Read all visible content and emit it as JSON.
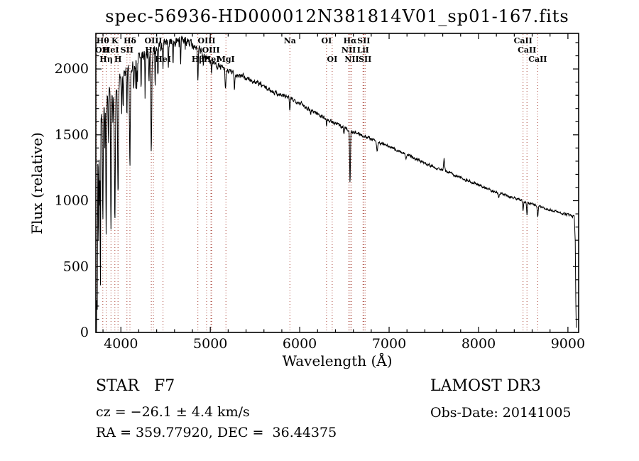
{
  "chart_data": {
    "type": "line",
    "title": "spec-56936-HD000012N381814V01_sp01-167.fits",
    "xlabel": "Wavelength (Å)",
    "ylabel": "Flux (relative)",
    "xlim": [
      3720,
      9120
    ],
    "ylim": [
      0,
      2270
    ],
    "x_ticks": [
      4000,
      5000,
      6000,
      7000,
      8000,
      9000
    ],
    "y_ticks": [
      0,
      500,
      1000,
      1500,
      2000
    ],
    "x_minor_step": 200,
    "y_minor_step": 100,
    "grid": false,
    "legend": "none",
    "line_color": "#000000",
    "marker_line_color": "#aa4438",
    "noise_seed": 7,
    "noise_profile": [
      [
        3720,
        110
      ],
      [
        4000,
        85
      ],
      [
        4400,
        60
      ],
      [
        4800,
        42
      ],
      [
        5200,
        30
      ],
      [
        5600,
        26
      ],
      [
        6000,
        22
      ],
      [
        6500,
        19
      ],
      [
        7000,
        17
      ],
      [
        7600,
        15
      ],
      [
        8200,
        14
      ],
      [
        9095,
        13
      ]
    ],
    "continuum": [
      [
        3720,
        60
      ],
      [
        3726,
        600
      ],
      [
        3731,
        1150
      ],
      [
        3737,
        1400
      ],
      [
        3745,
        1520
      ],
      [
        3755,
        1590
      ],
      [
        3775,
        1640
      ],
      [
        3800,
        1680
      ],
      [
        3830,
        1720
      ],
      [
        3860,
        1760
      ],
      [
        3900,
        1800
      ],
      [
        3940,
        1840
      ],
      [
        3980,
        1880
      ],
      [
        4020,
        1930
      ],
      [
        4060,
        1970
      ],
      [
        4100,
        2000
      ],
      [
        4150,
        2050
      ],
      [
        4200,
        2085
      ],
      [
        4250,
        2110
      ],
      [
        4300,
        2125
      ],
      [
        4350,
        2140
      ],
      [
        4400,
        2155
      ],
      [
        4450,
        2170
      ],
      [
        4500,
        2185
      ],
      [
        4550,
        2195
      ],
      [
        4600,
        2205
      ],
      [
        4650,
        2210
      ],
      [
        4700,
        2212
      ],
      [
        4750,
        2205
      ],
      [
        4800,
        2195
      ],
      [
        4850,
        2160
      ],
      [
        4900,
        2130
      ],
      [
        4950,
        2095
      ],
      [
        5000,
        2065
      ],
      [
        5050,
        2040
      ],
      [
        5100,
        2020
      ],
      [
        5150,
        2000
      ],
      [
        5200,
        1985
      ],
      [
        5250,
        1970
      ],
      [
        5300,
        1955
      ],
      [
        5350,
        1945
      ],
      [
        5400,
        1930
      ],
      [
        5450,
        1915
      ],
      [
        5500,
        1900
      ],
      [
        5550,
        1885
      ],
      [
        5600,
        1865
      ],
      [
        5650,
        1845
      ],
      [
        5700,
        1830
      ],
      [
        5750,
        1815
      ],
      [
        5800,
        1800
      ],
      [
        5850,
        1790
      ],
      [
        5900,
        1775
      ],
      [
        5950,
        1760
      ],
      [
        6000,
        1745
      ],
      [
        6050,
        1720
      ],
      [
        6100,
        1700
      ],
      [
        6150,
        1680
      ],
      [
        6200,
        1660
      ],
      [
        6250,
        1640
      ],
      [
        6300,
        1620
      ],
      [
        6350,
        1600
      ],
      [
        6400,
        1585
      ],
      [
        6450,
        1570
      ],
      [
        6500,
        1555
      ],
      [
        6550,
        1535
      ],
      [
        6600,
        1520
      ],
      [
        6650,
        1510
      ],
      [
        6700,
        1498
      ],
      [
        6750,
        1485
      ],
      [
        6800,
        1470
      ],
      [
        6850,
        1455
      ],
      [
        6900,
        1440
      ],
      [
        6950,
        1425
      ],
      [
        7000,
        1410
      ],
      [
        7100,
        1380
      ],
      [
        7200,
        1350
      ],
      [
        7300,
        1318
      ],
      [
        7400,
        1288
      ],
      [
        7500,
        1258
      ],
      [
        7600,
        1232
      ],
      [
        7700,
        1205
      ],
      [
        7800,
        1175
      ],
      [
        7900,
        1148
      ],
      [
        8000,
        1120
      ],
      [
        8100,
        1092
      ],
      [
        8200,
        1065
      ],
      [
        8300,
        1042
      ],
      [
        8400,
        1020
      ],
      [
        8500,
        995
      ],
      [
        8600,
        972
      ],
      [
        8700,
        950
      ],
      [
        8800,
        930
      ],
      [
        8900,
        910
      ],
      [
        9000,
        892
      ],
      [
        9040,
        884
      ],
      [
        9070,
        876
      ],
      [
        9082,
        700
      ],
      [
        9088,
        250
      ],
      [
        9093,
        40
      ]
    ],
    "absorption_lines": [
      {
        "wl": 3727,
        "depth": 800,
        "sigma": 5
      },
      {
        "wl": 3736,
        "depth": 1000,
        "sigma": 3
      },
      {
        "wl": 3750,
        "depth": 850,
        "sigma": 3
      },
      {
        "wl": 3762,
        "depth": 600,
        "sigma": 3
      },
      {
        "wl": 3771,
        "depth": 1400,
        "sigma": 2.5
      },
      {
        "wl": 3798,
        "depth": 800,
        "sigma": 4
      },
      {
        "wl": 3820,
        "depth": 350,
        "sigma": 3
      },
      {
        "wl": 3835,
        "depth": 950,
        "sigma": 4
      },
      {
        "wl": 3860,
        "depth": 300,
        "sigma": 3
      },
      {
        "wl": 3889,
        "depth": 1050,
        "sigma": 4.5
      },
      {
        "wl": 3910,
        "depth": 250,
        "sigma": 3
      },
      {
        "wl": 3933,
        "depth": 950,
        "sigma": 5
      },
      {
        "wl": 3968,
        "depth": 850,
        "sigma": 5
      },
      {
        "wl": 4009,
        "depth": 250,
        "sigma": 3
      },
      {
        "wl": 4026,
        "depth": 300,
        "sigma": 3
      },
      {
        "wl": 4068,
        "depth": 350,
        "sigma": 3
      },
      {
        "wl": 4101,
        "depth": 680,
        "sigma": 5
      },
      {
        "wl": 4144,
        "depth": 220,
        "sigma": 3
      },
      {
        "wl": 4178,
        "depth": 180,
        "sigma": 3
      },
      {
        "wl": 4226,
        "depth": 280,
        "sigma": 3
      },
      {
        "wl": 4271,
        "depth": 220,
        "sigma": 3
      },
      {
        "wl": 4315,
        "depth": 250,
        "sigma": 4
      },
      {
        "wl": 4340,
        "depth": 760,
        "sigma": 5
      },
      {
        "wl": 4383,
        "depth": 260,
        "sigma": 3
      },
      {
        "wl": 4415,
        "depth": 180,
        "sigma": 3
      },
      {
        "wl": 4471,
        "depth": 200,
        "sigma": 3
      },
      {
        "wl": 4531,
        "depth": 170,
        "sigma": 3
      },
      {
        "wl": 4584,
        "depth": 150,
        "sigma": 3
      },
      {
        "wl": 4668,
        "depth": 160,
        "sigma": 3
      },
      {
        "wl": 4861,
        "depth": 270,
        "sigma": 4
      },
      {
        "wl": 4922,
        "depth": 120,
        "sigma": 3
      },
      {
        "wl": 5015,
        "depth": 100,
        "sigma": 3
      },
      {
        "wl": 5170,
        "depth": 160,
        "sigma": 5
      },
      {
        "wl": 5270,
        "depth": 110,
        "sigma": 4
      },
      {
        "wl": 5890,
        "depth": 95,
        "sigma": 5
      },
      {
        "wl": 6122,
        "depth": 40,
        "sigma": 3
      },
      {
        "wl": 6300,
        "depth": 45,
        "sigma": 3
      },
      {
        "wl": 6495,
        "depth": 50,
        "sigma": 4
      },
      {
        "wl": 6563,
        "depth": 400,
        "sigma": 4.5
      },
      {
        "wl": 6867,
        "depth": 70,
        "sigma": 6
      },
      {
        "wl": 7186,
        "depth": 45,
        "sigma": 6
      },
      {
        "wl": 7615,
        "depth": -85,
        "sigma": 5
      },
      {
        "wl": 8227,
        "depth": 35,
        "sigma": 4
      },
      {
        "wl": 8498,
        "depth": 70,
        "sigma": 4
      },
      {
        "wl": 8542,
        "depth": 95,
        "sigma": 4
      },
      {
        "wl": 8662,
        "depth": 85,
        "sigma": 4
      }
    ],
    "spectral_lines": [
      {
        "wl": 3727,
        "label": "OII",
        "row": 2
      },
      {
        "wl": 3798,
        "label": "Hθ",
        "row": 1
      },
      {
        "wl": 3835,
        "label": "Hη",
        "row": 3
      },
      {
        "wl": 3889,
        "label": "HeI",
        "row": 2
      },
      {
        "wl": 3933,
        "label": "K",
        "row": 1
      },
      {
        "wl": 3968,
        "label": "H",
        "row": 3
      },
      {
        "wl": 4068,
        "label": "SII",
        "row": 2
      },
      {
        "wl": 4101,
        "label": "Hδ",
        "row": 1
      },
      {
        "wl": 4340,
        "label": "Hγ",
        "row": 2
      },
      {
        "wl": 4363,
        "label": "OIII",
        "row": 1
      },
      {
        "wl": 4471,
        "label": "HeI",
        "row": 3
      },
      {
        "wl": 4861,
        "label": "Hβ",
        "row": 3
      },
      {
        "wl": 4959,
        "label": "OIII",
        "row": 1
      },
      {
        "wl": 5007,
        "label": "OIII",
        "row": 2
      },
      {
        "wl": 5015,
        "label": "HeI",
        "row": 3
      },
      {
        "wl": 5175,
        "label": "MgI",
        "row": 3
      },
      {
        "wl": 5890,
        "label": "Na",
        "row": 1
      },
      {
        "wl": 6300,
        "label": "OI",
        "row": 1
      },
      {
        "wl": 6364,
        "label": "OI",
        "row": 3
      },
      {
        "wl": 6548,
        "label": "NII",
        "row": 2
      },
      {
        "wl": 6563,
        "label": "Hα",
        "row": 1
      },
      {
        "wl": 6583,
        "label": "NII",
        "row": 3
      },
      {
        "wl": 6708,
        "label": "LiI",
        "row": 2
      },
      {
        "wl": 6716,
        "label": "SII",
        "row": 1
      },
      {
        "wl": 6731,
        "label": "SII",
        "row": 3
      },
      {
        "wl": 8498,
        "label": "CaII",
        "row": 1
      },
      {
        "wl": 8542,
        "label": "CaII",
        "row": 2
      },
      {
        "wl": 8662,
        "label": "CaII",
        "row": 3
      }
    ]
  },
  "annotations": {
    "class_label": "STAR   F7",
    "cz": "cz = −26.1 ± 4.4 km/s",
    "ra_dec": "RA = 359.77920, DEC =  36.44375",
    "survey": "LAMOST DR3",
    "obs_date": "Obs-Date: 20141005"
  }
}
